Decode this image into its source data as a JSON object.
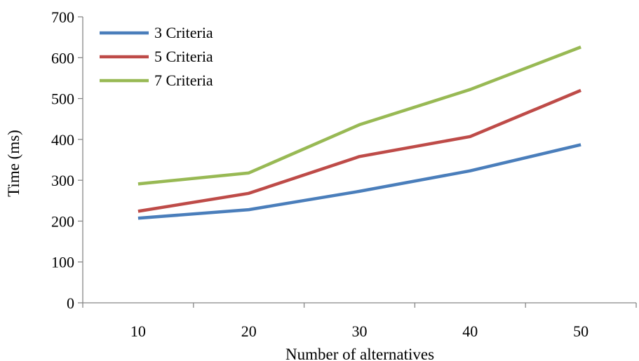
{
  "chart_data": {
    "type": "line",
    "title": "",
    "xlabel": "Number of alternatives",
    "ylabel": "Time (ms)",
    "categories": [
      "10",
      "20",
      "30",
      "40",
      "50"
    ],
    "ylim": [
      0,
      700
    ],
    "yticks": [
      "0",
      "100",
      "200",
      "300",
      "400",
      "500",
      "600",
      "700"
    ],
    "grid": false,
    "legend_position": "top-left",
    "series": [
      {
        "name": "3 Criteria",
        "color": "#4a7ebb",
        "values": [
          207,
          228,
          273,
          323,
          387
        ]
      },
      {
        "name": "5 Criteria",
        "color": "#be4b48",
        "values": [
          224,
          268,
          358,
          407,
          520
        ]
      },
      {
        "name": "7 Criteria",
        "color": "#98b954",
        "values": [
          291,
          318,
          436,
          522,
          626
        ]
      }
    ]
  }
}
